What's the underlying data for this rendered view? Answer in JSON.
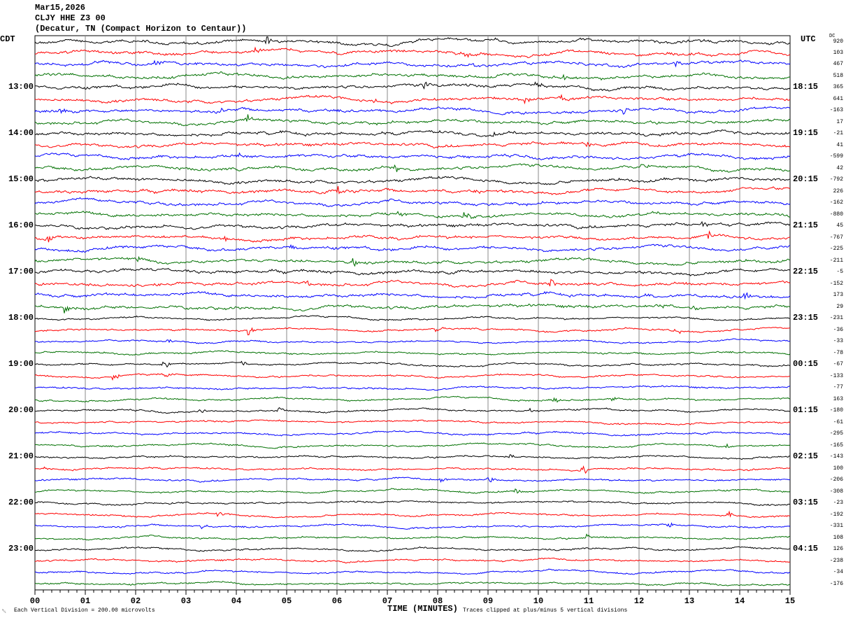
{
  "header": {
    "date": "Mar15,2026",
    "station": "CLJY HHE Z3 00",
    "location": "(Decatur, TN (Compact Horizon to Centaur))"
  },
  "left_axis_title": "CDT",
  "right_axis_title": "UTC",
  "dc_title": "DC",
  "footer": {
    "scale": "Each Vertical Division =  200.00 microvolts",
    "xlabel": "TIME (MINUTES)",
    "clip_note": "Traces clipped at plus/minus 5 vertical divisions"
  },
  "chart_data": {
    "type": "line",
    "subtype": "helicorder",
    "xlabel": "TIME (MINUTES)",
    "xlim": [
      0,
      15
    ],
    "x_ticks": [
      "00",
      "01",
      "02",
      "03",
      "04",
      "05",
      "06",
      "07",
      "08",
      "09",
      "10",
      "11",
      "12",
      "13",
      "14",
      "15"
    ],
    "grid": "vertical lines each minute",
    "trace_colors": [
      "#000000",
      "#ff0000",
      "#0000ff",
      "#007000"
    ],
    "traces_per_hour": 4,
    "left_hour_labels": [
      "13:00",
      "14:00",
      "15:00",
      "16:00",
      "17:00",
      "18:00",
      "19:00",
      "20:00",
      "21:00",
      "22:00",
      "23:00"
    ],
    "right_hour_labels": [
      "18:15",
      "19:15",
      "20:15",
      "21:15",
      "22:15",
      "23:15",
      "00:15",
      "01:15",
      "02:15",
      "03:15",
      "04:15"
    ],
    "dc_offsets": [
      "920",
      "103",
      "467",
      "518",
      "365",
      "641",
      "-163",
      "17",
      "-21",
      "41",
      "-599",
      "42",
      "-792",
      "226",
      "-162",
      "-880",
      "45",
      "-767",
      "-225",
      "-211",
      "-5",
      "-152",
      "173",
      "29",
      "-231",
      "-36",
      "-33",
      "-78",
      "-67",
      "-133",
      "-77",
      "163",
      "-180",
      "-61",
      "-295",
      "-165",
      "-143",
      "100",
      "-206",
      "-308",
      "-23",
      "-192",
      "-331",
      "108",
      "126",
      "-238",
      "-34",
      "-176"
    ]
  }
}
